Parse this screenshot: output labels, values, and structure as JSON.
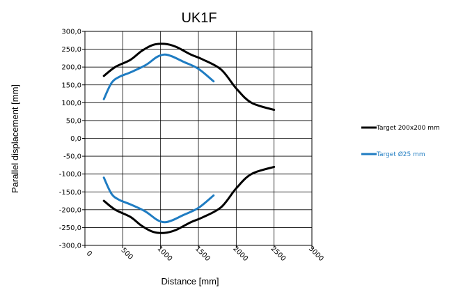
{
  "chart_data": {
    "type": "line",
    "title": "UK1F",
    "xlabel": "Distance  [mm]",
    "ylabel": "Parallel displacement [mm]",
    "xlim": [
      0,
      3000
    ],
    "ylim": [
      -300,
      300
    ],
    "x_ticks": [
      0,
      500,
      1000,
      1500,
      2000,
      2500,
      3000
    ],
    "x_tick_labels": [
      "0",
      "500",
      "1000",
      "1500",
      "2000",
      "2500",
      "3000"
    ],
    "y_ticks": [
      300,
      250,
      200,
      150,
      100,
      50,
      0,
      -50,
      -100,
      -150,
      -200,
      -250,
      -300
    ],
    "y_tick_labels": [
      "300,0",
      "250,0",
      "200,0",
      "150,0",
      "100,0",
      "50,0",
      "0,0",
      "-50,0",
      "-100,0",
      "-150,0",
      "-200,0",
      "-250,0",
      "-300,0"
    ],
    "grid": "horizontal and vertical",
    "legend_position": "right",
    "series": [
      {
        "name": "Target 200x200 mm",
        "color": "#000000",
        "x": [
          250,
          400,
          600,
          750,
          900,
          1050,
          1200,
          1400,
          1550,
          1800,
          2000,
          2200,
          2500
        ],
        "upper": [
          175,
          200,
          220,
          245,
          262,
          265,
          257,
          235,
          222,
          193,
          140,
          100,
          80
        ],
        "lower": [
          -175,
          -200,
          -220,
          -245,
          -262,
          -265,
          -257,
          -235,
          -222,
          -193,
          -140,
          -100,
          -80
        ]
      },
      {
        "name": "Target Ø25 mm",
        "color": "#1f7cc2",
        "x": [
          250,
          350,
          450,
          600,
          800,
          950,
          1050,
          1150,
          1300,
          1500,
          1700
        ],
        "upper": [
          110,
          155,
          172,
          185,
          205,
          228,
          235,
          230,
          215,
          195,
          160
        ],
        "lower": [
          -110,
          -155,
          -172,
          -185,
          -205,
          -228,
          -235,
          -230,
          -215,
          -195,
          -160
        ]
      }
    ]
  }
}
